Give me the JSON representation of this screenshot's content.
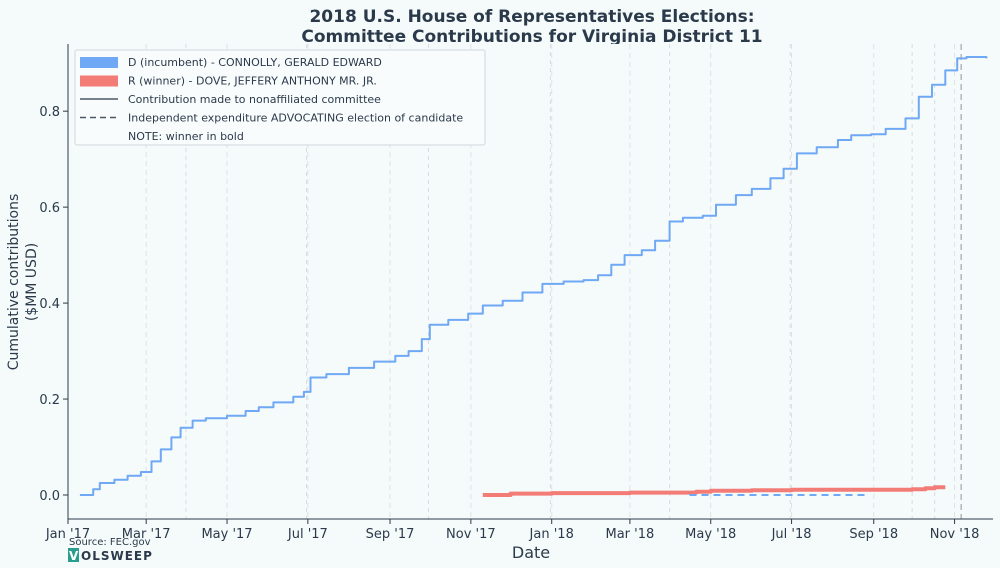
{
  "chart_data": {
    "type": "line",
    "title": "2018 U.S. House of Representatives Elections:",
    "subtitle": "Committee Contributions for Virginia District 11",
    "xlabel": "Date",
    "ylabel_line1": "Cumulative contributions",
    "ylabel_line2": "($MM USD)",
    "x_domain": [
      "2017-01-01",
      "2018-11-30"
    ],
    "ylim": [
      -0.05,
      0.94
    ],
    "x_ticks": [
      {
        "date": "2017-01-01",
        "label": "Jan '17"
      },
      {
        "date": "2017-03-01",
        "label": "Mar '17"
      },
      {
        "date": "2017-05-01",
        "label": "May '17"
      },
      {
        "date": "2017-07-01",
        "label": "Jul '17"
      },
      {
        "date": "2017-09-01",
        "label": "Sep '17"
      },
      {
        "date": "2017-11-01",
        "label": "Nov '17"
      },
      {
        "date": "2018-01-01",
        "label": "Jan '18"
      },
      {
        "date": "2018-03-01",
        "label": "Mar '18"
      },
      {
        "date": "2018-05-01",
        "label": "May '18"
      },
      {
        "date": "2018-07-01",
        "label": "Jul '18"
      },
      {
        "date": "2018-09-01",
        "label": "Sep '18"
      },
      {
        "date": "2018-11-01",
        "label": "Nov '18"
      }
    ],
    "y_ticks": [
      {
        "value": 0.0,
        "label": "0.0"
      },
      {
        "value": 0.2,
        "label": "0.2"
      },
      {
        "value": 0.4,
        "label": "0.4"
      },
      {
        "value": 0.6,
        "label": "0.6"
      },
      {
        "value": 0.8,
        "label": "0.8"
      }
    ],
    "grid": "vertical dashed",
    "quarter_markers": [
      "2017-03-31",
      "2017-06-30",
      "2017-09-30",
      "2017-12-31",
      "2018-03-31",
      "2018-06-30",
      "2018-09-30",
      "2018-10-17"
    ],
    "election_day": "2018-11-06",
    "legend_position": "top-left",
    "series": [
      {
        "name": "D (incumbent) - CONNOLLY, GERALD EDWARD",
        "color": "#6fa8f5",
        "style": "solid",
        "points": [
          [
            "2017-01-10",
            0.0
          ],
          [
            "2017-01-20",
            0.012
          ],
          [
            "2017-01-25",
            0.025
          ],
          [
            "2017-02-05",
            0.032
          ],
          [
            "2017-02-15",
            0.04
          ],
          [
            "2017-02-25",
            0.048
          ],
          [
            "2017-03-05",
            0.07
          ],
          [
            "2017-03-12",
            0.095
          ],
          [
            "2017-03-20",
            0.12
          ],
          [
            "2017-03-27",
            0.14
          ],
          [
            "2017-04-05",
            0.155
          ],
          [
            "2017-04-15",
            0.16
          ],
          [
            "2017-05-01",
            0.165
          ],
          [
            "2017-05-15",
            0.175
          ],
          [
            "2017-05-25",
            0.183
          ],
          [
            "2017-06-05",
            0.193
          ],
          [
            "2017-06-20",
            0.205
          ],
          [
            "2017-06-28",
            0.215
          ],
          [
            "2017-07-03",
            0.245
          ],
          [
            "2017-07-15",
            0.252
          ],
          [
            "2017-08-01",
            0.265
          ],
          [
            "2017-08-20",
            0.278
          ],
          [
            "2017-09-05",
            0.29
          ],
          [
            "2017-09-15",
            0.3
          ],
          [
            "2017-09-25",
            0.325
          ],
          [
            "2017-10-01",
            0.355
          ],
          [
            "2017-10-15",
            0.365
          ],
          [
            "2017-10-30",
            0.378
          ],
          [
            "2017-11-10",
            0.395
          ],
          [
            "2017-11-25",
            0.405
          ],
          [
            "2017-12-10",
            0.422
          ],
          [
            "2017-12-25",
            0.44
          ],
          [
            "2018-01-10",
            0.445
          ],
          [
            "2018-01-25",
            0.448
          ],
          [
            "2018-02-05",
            0.458
          ],
          [
            "2018-02-15",
            0.48
          ],
          [
            "2018-02-25",
            0.5
          ],
          [
            "2018-03-10",
            0.51
          ],
          [
            "2018-03-20",
            0.53
          ],
          [
            "2018-03-31",
            0.57
          ],
          [
            "2018-04-10",
            0.578
          ],
          [
            "2018-04-25",
            0.582
          ],
          [
            "2018-05-05",
            0.605
          ],
          [
            "2018-05-20",
            0.625
          ],
          [
            "2018-06-01",
            0.638
          ],
          [
            "2018-06-15",
            0.66
          ],
          [
            "2018-06-25",
            0.68
          ],
          [
            "2018-07-05",
            0.712
          ],
          [
            "2018-07-20",
            0.725
          ],
          [
            "2018-08-05",
            0.74
          ],
          [
            "2018-08-15",
            0.75
          ],
          [
            "2018-08-30",
            0.752
          ],
          [
            "2018-09-10",
            0.763
          ],
          [
            "2018-09-25",
            0.785
          ],
          [
            "2018-10-05",
            0.83
          ],
          [
            "2018-10-15",
            0.855
          ],
          [
            "2018-10-25",
            0.885
          ],
          [
            "2018-11-03",
            0.91
          ],
          [
            "2018-11-10",
            0.913
          ],
          [
            "2018-11-25",
            0.91
          ]
        ]
      },
      {
        "name": "R (winner) - DOVE, JEFFERY ANTHONY MR. JR.",
        "color": "#f47c76",
        "style": "solid-bold",
        "points": [
          [
            "2017-11-10",
            0.0
          ],
          [
            "2017-12-01",
            0.003
          ],
          [
            "2018-01-01",
            0.004
          ],
          [
            "2018-03-01",
            0.005
          ],
          [
            "2018-04-20",
            0.007
          ],
          [
            "2018-05-01",
            0.009
          ],
          [
            "2018-06-01",
            0.01
          ],
          [
            "2018-07-01",
            0.011
          ],
          [
            "2018-08-01",
            0.011
          ],
          [
            "2018-09-01",
            0.011
          ],
          [
            "2018-09-30",
            0.012
          ],
          [
            "2018-10-10",
            0.014
          ],
          [
            "2018-10-17",
            0.016
          ],
          [
            "2018-10-25",
            0.016
          ]
        ]
      },
      {
        "name": "D IE advocating",
        "color": "#6fa8f5",
        "style": "dashed",
        "points": [
          [
            "2018-04-15",
            0.0
          ],
          [
            "2018-08-25",
            0.0
          ]
        ]
      }
    ],
    "legend": [
      {
        "label": "D (incumbent) - CONNOLLY, GERALD EDWARD",
        "kind": "patch",
        "color": "#6fa8f5"
      },
      {
        "label": "R (winner) - DOVE, JEFFERY ANTHONY MR. JR.",
        "kind": "patch",
        "color": "#f47c76"
      },
      {
        "label": "Contribution made to nonaffiliated committee",
        "kind": "line-solid",
        "color": "#4a5866"
      },
      {
        "label": "Independent expenditure ADVOCATING election of candidate",
        "kind": "line-dashed",
        "color": "#4a5866"
      },
      {
        "label": "NOTE: winner in bold",
        "kind": "none",
        "color": ""
      }
    ]
  },
  "footer": {
    "source": "Source: FEC.gov",
    "brand": "OLSWEEP",
    "brand_mark": "V"
  }
}
